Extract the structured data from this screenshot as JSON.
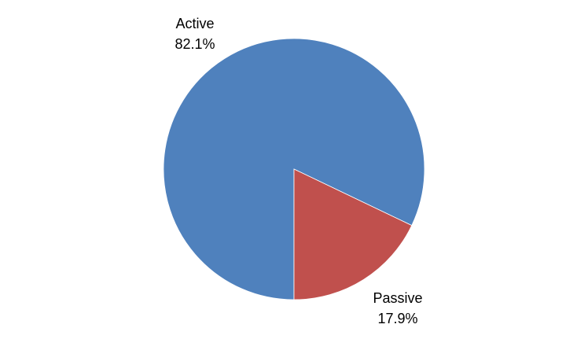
{
  "chart_data": {
    "type": "pie",
    "categories": [
      "Active",
      "Passive"
    ],
    "values": [
      82.1,
      17.9
    ],
    "value_labels": [
      "82.1%",
      "17.9%"
    ],
    "colors": [
      "#4F81BD",
      "#C0504D"
    ],
    "start_angle_deg": 0,
    "direction": "counterclockwise",
    "legend": "none",
    "title": ""
  }
}
